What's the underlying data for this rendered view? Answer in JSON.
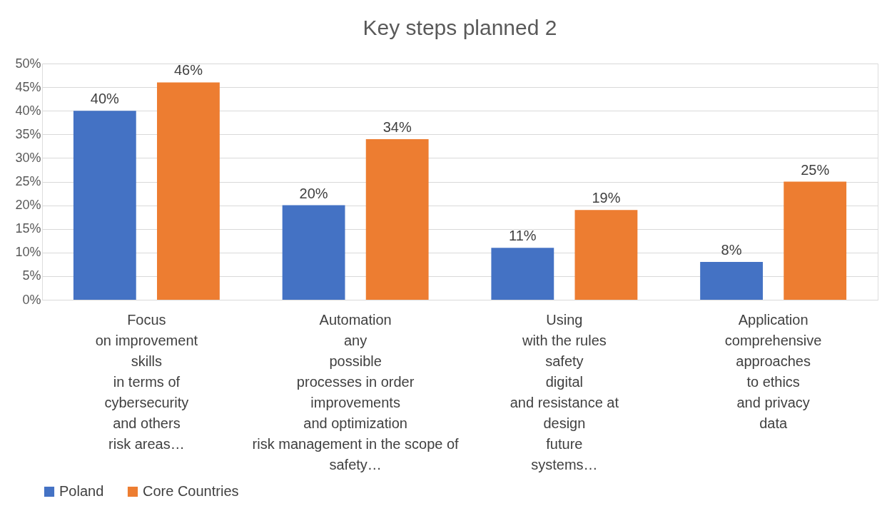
{
  "chart_data": {
    "type": "bar",
    "title": "Key steps planned 2",
    "categories": [
      "Focus\non improvement\nskills\nin terms of\ncybersecurity\nand others\nrisk areas…",
      "Automation\nany\npossible\nprocesses in order\nimprovements\nand optimization\nrisk management in the scope of\nsafety…",
      "Using\nwith the rules\nsafety\ndigital\nand resistance at\ndesign\nfuture\nsystems…",
      "Application\ncomprehensive\napproaches\nto ethics\nand privacy\ndata"
    ],
    "series": [
      {
        "name": "Poland",
        "color": "#4472c4",
        "values": [
          40,
          20,
          11,
          8
        ],
        "value_labels": [
          "40%",
          "20%",
          "11%",
          "8%"
        ]
      },
      {
        "name": "Core Countries",
        "color": "#ed7d31",
        "values": [
          46,
          34,
          19,
          25
        ],
        "value_labels": [
          "46%",
          "34%",
          "19%",
          "25%"
        ]
      }
    ],
    "ylim": [
      0,
      50
    ],
    "yticks": [
      {
        "value": 0,
        "label": "0%"
      },
      {
        "value": 5,
        "label": "5%"
      },
      {
        "value": 10,
        "label": "10%"
      },
      {
        "value": 15,
        "label": "15%"
      },
      {
        "value": 20,
        "label": "20%"
      },
      {
        "value": 25,
        "label": "25%"
      },
      {
        "value": 30,
        "label": "30%"
      },
      {
        "value": 35,
        "label": "35%"
      },
      {
        "value": 40,
        "label": "40%"
      },
      {
        "value": 45,
        "label": "45%"
      },
      {
        "value": 50,
        "label": "50%"
      }
    ],
    "grid": "y",
    "legend": "bottom"
  }
}
